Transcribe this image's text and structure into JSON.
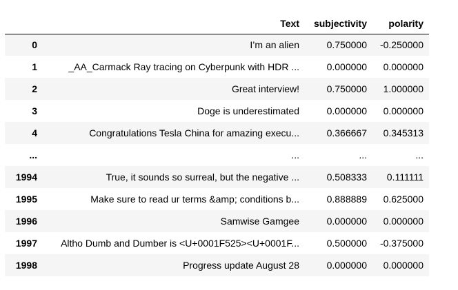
{
  "table": {
    "columns": [
      "",
      "Text",
      "subjectivity",
      "polarity"
    ],
    "rows": [
      {
        "index": "0",
        "text": "I’m an alien",
        "subjectivity": "0.750000",
        "polarity": "-0.250000"
      },
      {
        "index": "1",
        "text": "_AA_Carmack Ray tracing on Cyberpunk with HDR ...",
        "subjectivity": "0.000000",
        "polarity": "0.000000"
      },
      {
        "index": "2",
        "text": "Great interview!",
        "subjectivity": "0.750000",
        "polarity": "1.000000"
      },
      {
        "index": "3",
        "text": "Doge is underestimated",
        "subjectivity": "0.000000",
        "polarity": "0.000000"
      },
      {
        "index": "4",
        "text": "Congratulations Tesla China for amazing execu...",
        "subjectivity": "0.366667",
        "polarity": "0.345313"
      },
      {
        "index": "...",
        "text": "...",
        "subjectivity": "...",
        "polarity": "..."
      },
      {
        "index": "1994",
        "text": "True, it sounds so surreal, but the negative ...",
        "subjectivity": "0.508333",
        "polarity": "0.111111"
      },
      {
        "index": "1995",
        "text": "Make sure to read ur terms &amp; conditions b...",
        "subjectivity": "0.888889",
        "polarity": "0.625000"
      },
      {
        "index": "1996",
        "text": "Samwise Gamgee",
        "subjectivity": "0.000000",
        "polarity": "0.000000"
      },
      {
        "index": "1997",
        "text": "Altho Dumb and Dumber is <U+0001F525><U+0001F...",
        "subjectivity": "0.500000",
        "polarity": "-0.375000"
      },
      {
        "index": "1998",
        "text": "Progress update August 28",
        "subjectivity": "0.000000",
        "polarity": "0.000000"
      }
    ]
  }
}
